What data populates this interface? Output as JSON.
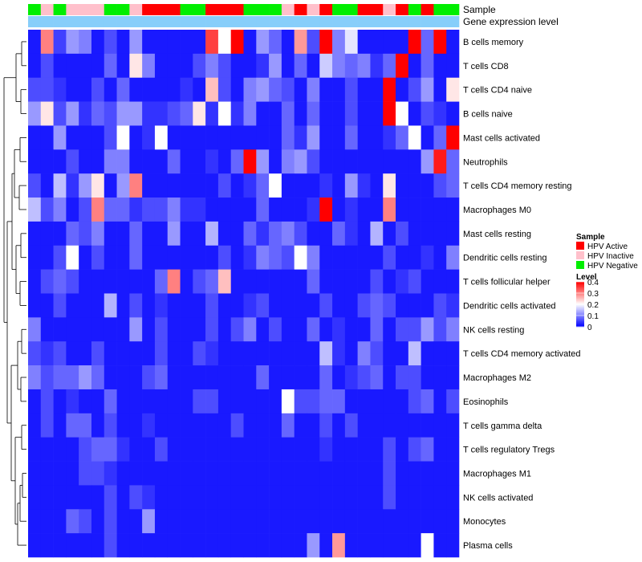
{
  "chart_data": {
    "type": "heatmap",
    "annotation_labels": [
      "Sample",
      "Gene expression level"
    ],
    "rows": [
      "B cells memory",
      "T cells CD8",
      "T cells CD4 naive",
      "B cells naive",
      "Mast cells activated",
      "Neutrophils",
      "T cells CD4 memory resting",
      "Macrophages M0",
      "Mast cells resting",
      "Dendritic cells resting",
      "T cells follicular helper",
      "Dendritic cells activated",
      "NK cells resting",
      "T cells CD4 memory activated",
      "Macrophages M2",
      "Eosinophils",
      "T cells gamma delta",
      "T cells regulatory  Tregs",
      "Macrophages M1",
      "NK cells activated",
      "Monocytes",
      "Plasma cells"
    ],
    "sample_groups": [
      "N",
      "I",
      "N",
      "I",
      "I",
      "I",
      "N",
      "N",
      "I",
      "A",
      "A",
      "A",
      "N",
      "N",
      "A",
      "A",
      "A",
      "N",
      "N",
      "N",
      "I",
      "A",
      "I",
      "A",
      "N",
      "N",
      "A",
      "A",
      "I",
      "A",
      "N",
      "A",
      "N",
      "N"
    ],
    "gene_expression_level": [
      0.15,
      0.15,
      0.15,
      0.15,
      0.15,
      0.15,
      0.15,
      0.15,
      0.15,
      0.15,
      0.15,
      0.15,
      0.15,
      0.15,
      0.15,
      0.15,
      0.15,
      0.15,
      0.15,
      0.15,
      0.15,
      0.15,
      0.15,
      0.15,
      0.15,
      0.15,
      0.15,
      0.15,
      0.15,
      0.15,
      0.15,
      0.15,
      0.15,
      0.15
    ],
    "values": [
      [
        0.02,
        0.3,
        0.05,
        0.12,
        0.1,
        0.02,
        0.06,
        0.02,
        0.12,
        0.02,
        0.02,
        0.02,
        0.02,
        0.02,
        0.35,
        0.2,
        0.4,
        0.02,
        0.12,
        0.08,
        0.02,
        0.28,
        0.06,
        0.4,
        0.1,
        0.18,
        0.02,
        0.02,
        0.02,
        0.02,
        0.4,
        0.08,
        0.4,
        0.02
      ],
      [
        0.02,
        0.06,
        0.02,
        0.02,
        0.02,
        0.02,
        0.08,
        0.02,
        0.22,
        0.1,
        0.02,
        0.02,
        0.02,
        0.06,
        0.1,
        0.06,
        0.02,
        0.02,
        0.04,
        0.12,
        0.02,
        0.08,
        0.02,
        0.16,
        0.1,
        0.08,
        0.1,
        0.04,
        0.08,
        0.4,
        0.02,
        0.08,
        0.02,
        0.02
      ],
      [
        0.06,
        0.06,
        0.04,
        0.02,
        0.02,
        0.06,
        0.02,
        0.08,
        0.02,
        0.02,
        0.02,
        0.02,
        0.04,
        0.02,
        0.25,
        0.06,
        0.02,
        0.1,
        0.12,
        0.08,
        0.06,
        0.02,
        0.1,
        0.02,
        0.02,
        0.06,
        0.02,
        0.02,
        0.4,
        0.02,
        0.06,
        0.12,
        0.02,
        0.22
      ],
      [
        0.12,
        0.22,
        0.06,
        0.12,
        0.04,
        0.08,
        0.06,
        0.12,
        0.12,
        0.04,
        0.04,
        0.06,
        0.08,
        0.22,
        0.04,
        0.2,
        0.04,
        0.1,
        0.02,
        0.02,
        0.08,
        0.02,
        0.08,
        0.02,
        0.02,
        0.06,
        0.02,
        0.02,
        0.4,
        0.2,
        0.02,
        0.06,
        0.04,
        0.02
      ],
      [
        0.02,
        0.02,
        0.12,
        0.02,
        0.02,
        0.02,
        0.06,
        0.2,
        0.02,
        0.04,
        0.2,
        0.02,
        0.02,
        0.02,
        0.02,
        0.02,
        0.02,
        0.02,
        0.02,
        0.02,
        0.08,
        0.04,
        0.12,
        0.02,
        0.02,
        0.08,
        0.02,
        0.02,
        0.04,
        0.08,
        0.2,
        0.02,
        0.08,
        0.4
      ],
      [
        0.02,
        0.02,
        0.02,
        0.06,
        0.02,
        0.02,
        0.1,
        0.1,
        0.02,
        0.02,
        0.02,
        0.08,
        0.02,
        0.02,
        0.04,
        0.02,
        0.08,
        0.4,
        0.12,
        0.02,
        0.1,
        0.12,
        0.06,
        0.02,
        0.02,
        0.02,
        0.02,
        0.02,
        0.02,
        0.02,
        0.02,
        0.12,
        0.38,
        0.08
      ],
      [
        0.06,
        0.02,
        0.15,
        0.04,
        0.12,
        0.22,
        0.02,
        0.12,
        0.3,
        0.02,
        0.02,
        0.02,
        0.02,
        0.02,
        0.02,
        0.06,
        0.02,
        0.04,
        0.08,
        0.2,
        0.02,
        0.02,
        0.02,
        0.04,
        0.02,
        0.12,
        0.04,
        0.02,
        0.22,
        0.02,
        0.02,
        0.02,
        0.06,
        0.08
      ],
      [
        0.15,
        0.06,
        0.1,
        0.02,
        0.06,
        0.3,
        0.08,
        0.08,
        0.04,
        0.06,
        0.06,
        0.1,
        0.04,
        0.04,
        0.02,
        0.02,
        0.02,
        0.02,
        0.08,
        0.02,
        0.02,
        0.02,
        0.04,
        0.4,
        0.02,
        0.04,
        0.02,
        0.02,
        0.3,
        0.02,
        0.02,
        0.02,
        0.02,
        0.02
      ],
      [
        0.02,
        0.02,
        0.02,
        0.08,
        0.06,
        0.1,
        0.02,
        0.02,
        0.08,
        0.02,
        0.02,
        0.12,
        0.02,
        0.02,
        0.14,
        0.02,
        0.02,
        0.08,
        0.04,
        0.08,
        0.1,
        0.06,
        0.02,
        0.02,
        0.08,
        0.04,
        0.02,
        0.14,
        0.02,
        0.06,
        0.02,
        0.02,
        0.02,
        0.02
      ],
      [
        0.02,
        0.02,
        0.06,
        0.2,
        0.02,
        0.06,
        0.02,
        0.02,
        0.08,
        0.02,
        0.02,
        0.02,
        0.02,
        0.02,
        0.02,
        0.06,
        0.02,
        0.04,
        0.1,
        0.08,
        0.06,
        0.2,
        0.1,
        0.02,
        0.02,
        0.02,
        0.02,
        0.02,
        0.06,
        0.02,
        0.02,
        0.04,
        0.02,
        0.1
      ],
      [
        0.02,
        0.06,
        0.08,
        0.06,
        0.02,
        0.02,
        0.02,
        0.02,
        0.02,
        0.02,
        0.08,
        0.3,
        0.02,
        0.06,
        0.08,
        0.25,
        0.02,
        0.02,
        0.02,
        0.02,
        0.02,
        0.02,
        0.08,
        0.02,
        0.02,
        0.02,
        0.02,
        0.06,
        0.02,
        0.04,
        0.06,
        0.02,
        0.02,
        0.02
      ],
      [
        0.02,
        0.02,
        0.06,
        0.02,
        0.02,
        0.02,
        0.14,
        0.02,
        0.06,
        0.02,
        0.04,
        0.02,
        0.02,
        0.02,
        0.06,
        0.02,
        0.02,
        0.04,
        0.06,
        0.02,
        0.02,
        0.02,
        0.02,
        0.06,
        0.02,
        0.02,
        0.06,
        0.08,
        0.06,
        0.02,
        0.02,
        0.02,
        0.06,
        0.04
      ],
      [
        0.1,
        0.02,
        0.02,
        0.02,
        0.02,
        0.02,
        0.02,
        0.02,
        0.12,
        0.02,
        0.06,
        0.02,
        0.02,
        0.02,
        0.06,
        0.02,
        0.06,
        0.1,
        0.02,
        0.06,
        0.02,
        0.02,
        0.08,
        0.02,
        0.04,
        0.02,
        0.02,
        0.08,
        0.02,
        0.06,
        0.06,
        0.12,
        0.06,
        0.1
      ],
      [
        0.06,
        0.04,
        0.06,
        0.02,
        0.02,
        0.06,
        0.02,
        0.02,
        0.02,
        0.02,
        0.06,
        0.02,
        0.02,
        0.06,
        0.04,
        0.02,
        0.02,
        0.02,
        0.02,
        0.02,
        0.02,
        0.02,
        0.02,
        0.15,
        0.04,
        0.02,
        0.1,
        0.06,
        0.02,
        0.02,
        0.15,
        0.02,
        0.02,
        0.02
      ],
      [
        0.1,
        0.06,
        0.08,
        0.08,
        0.12,
        0.08,
        0.02,
        0.02,
        0.02,
        0.06,
        0.08,
        0.02,
        0.02,
        0.02,
        0.02,
        0.02,
        0.02,
        0.02,
        0.08,
        0.02,
        0.02,
        0.02,
        0.02,
        0.08,
        0.02,
        0.04,
        0.06,
        0.08,
        0.02,
        0.06,
        0.06,
        0.02,
        0.02,
        0.02
      ],
      [
        0.02,
        0.06,
        0.02,
        0.04,
        0.02,
        0.02,
        0.08,
        0.02,
        0.02,
        0.02,
        0.02,
        0.02,
        0.02,
        0.06,
        0.06,
        0.02,
        0.02,
        0.02,
        0.02,
        0.02,
        0.2,
        0.06,
        0.06,
        0.08,
        0.08,
        0.02,
        0.02,
        0.02,
        0.02,
        0.02,
        0.06,
        0.08,
        0.02,
        0.06
      ],
      [
        0.02,
        0.06,
        0.02,
        0.08,
        0.08,
        0.02,
        0.06,
        0.02,
        0.02,
        0.04,
        0.02,
        0.02,
        0.02,
        0.02,
        0.02,
        0.02,
        0.06,
        0.02,
        0.02,
        0.02,
        0.08,
        0.02,
        0.02,
        0.06,
        0.02,
        0.06,
        0.02,
        0.02,
        0.02,
        0.02,
        0.02,
        0.02,
        0.02,
        0.02
      ],
      [
        0.02,
        0.02,
        0.02,
        0.02,
        0.06,
        0.08,
        0.08,
        0.04,
        0.02,
        0.02,
        0.06,
        0.02,
        0.02,
        0.02,
        0.02,
        0.02,
        0.02,
        0.02,
        0.02,
        0.02,
        0.02,
        0.02,
        0.02,
        0.04,
        0.02,
        0.02,
        0.02,
        0.02,
        0.06,
        0.02,
        0.06,
        0.08,
        0.02,
        0.02
      ],
      [
        0.02,
        0.02,
        0.02,
        0.02,
        0.06,
        0.06,
        0.04,
        0.02,
        0.02,
        0.02,
        0.02,
        0.02,
        0.02,
        0.02,
        0.02,
        0.02,
        0.02,
        0.02,
        0.02,
        0.02,
        0.02,
        0.02,
        0.02,
        0.02,
        0.02,
        0.02,
        0.02,
        0.02,
        0.06,
        0.02,
        0.02,
        0.02,
        0.02,
        0.02
      ],
      [
        0.02,
        0.02,
        0.02,
        0.02,
        0.02,
        0.02,
        0.06,
        0.02,
        0.06,
        0.04,
        0.02,
        0.02,
        0.02,
        0.02,
        0.02,
        0.02,
        0.02,
        0.02,
        0.02,
        0.02,
        0.02,
        0.02,
        0.02,
        0.02,
        0.02,
        0.02,
        0.02,
        0.02,
        0.06,
        0.02,
        0.02,
        0.02,
        0.02,
        0.02
      ],
      [
        0.02,
        0.02,
        0.02,
        0.08,
        0.06,
        0.02,
        0.06,
        0.02,
        0.02,
        0.12,
        0.02,
        0.02,
        0.02,
        0.02,
        0.02,
        0.02,
        0.02,
        0.02,
        0.02,
        0.02,
        0.02,
        0.02,
        0.02,
        0.02,
        0.02,
        0.02,
        0.02,
        0.02,
        0.02,
        0.02,
        0.02,
        0.02,
        0.02,
        0.02
      ],
      [
        0.02,
        0.02,
        0.02,
        0.02,
        0.02,
        0.02,
        0.06,
        0.02,
        0.02,
        0.02,
        0.02,
        0.02,
        0.02,
        0.02,
        0.02,
        0.02,
        0.02,
        0.02,
        0.02,
        0.02,
        0.02,
        0.02,
        0.12,
        0.02,
        0.28,
        0.02,
        0.02,
        0.02,
        0.02,
        0.02,
        0.02,
        0.2,
        0.02,
        0.02
      ]
    ],
    "legend_sample": {
      "title": "Sample",
      "entries": [
        {
          "code": "A",
          "label": "HPV Active",
          "color": "#FF0000"
        },
        {
          "code": "I",
          "label": "HPV Inactive",
          "color": "#FFC0CB"
        },
        {
          "code": "N",
          "label": "HPV Negative",
          "color": "#00EE00"
        }
      ]
    },
    "legend_level": {
      "title": "Level",
      "range": [
        0,
        0.4
      ],
      "ticks": [
        "0.4",
        "0.3",
        "0.2",
        "0.1",
        "0"
      ],
      "tick_values": [
        0.4,
        0.3,
        0.2,
        0.1,
        0
      ],
      "colors": {
        "low": "#0000FF",
        "mid": "#FFFFFF",
        "high": "#FF0000"
      }
    },
    "expression_bar_color": "#87CEFA",
    "dendrogram": "rows clustered (left side)"
  }
}
